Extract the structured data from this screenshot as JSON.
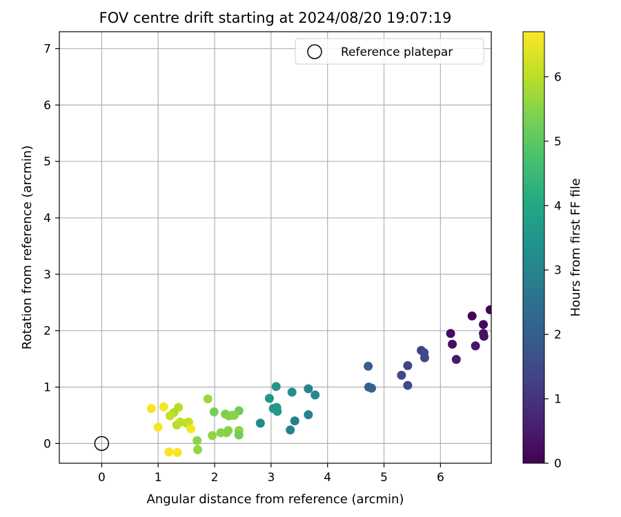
{
  "chart_data": {
    "type": "scatter",
    "title": "FOV centre drift starting at 2024/08/20 19:07:19",
    "xlabel": "Angular distance from reference (arcmin)",
    "ylabel": "Rotation from reference (arcmin)",
    "xlim": [
      -0.75,
      6.9
    ],
    "ylim": [
      -0.35,
      7.3
    ],
    "xticks": [
      0,
      1,
      2,
      3,
      4,
      5,
      6
    ],
    "yticks": [
      0,
      1,
      2,
      3,
      4,
      5,
      6,
      7
    ],
    "grid": true,
    "legend": {
      "position": "top-right",
      "label": "Reference platepar"
    },
    "reference_point": {
      "x": 0,
      "y": 0
    },
    "colorbar": {
      "label": "Hours from first FF file",
      "colormap": "viridis",
      "range": [
        0,
        6.7
      ],
      "ticks": [
        0,
        1,
        2,
        3,
        4,
        5,
        6
      ]
    },
    "series": [
      {
        "x": [
          6.88,
          6.56,
          6.76,
          6.18,
          6.21,
          6.76,
          6.77,
          6.62,
          6.28,
          5.66,
          5.42,
          5.71,
          5.72,
          5.31,
          5.42,
          4.72,
          4.73,
          4.78,
          3.09,
          2.97,
          3.04,
          3.1,
          3.11,
          3.37,
          3.66,
          3.78,
          3.42,
          3.66,
          3.34,
          2.81,
          1.88,
          2.43,
          1.99,
          2.19,
          2.25,
          2.35,
          2.31,
          2.24,
          2.21,
          2.11,
          1.96,
          2.43,
          2.43,
          1.69,
          1.7,
          1.36,
          1.28,
          1.21,
          1.33,
          1.39,
          1.5,
          1.54,
          1.58,
          1.1,
          0.88,
          1.0,
          1.19,
          1.34
        ],
        "y": [
          2.37,
          2.26,
          2.11,
          1.95,
          1.76,
          1.95,
          1.9,
          1.73,
          1.49,
          1.65,
          1.38,
          1.61,
          1.52,
          1.21,
          1.03,
          1.37,
          1.0,
          0.98,
          1.01,
          0.8,
          0.62,
          0.64,
          0.57,
          0.91,
          0.97,
          0.86,
          0.4,
          0.51,
          0.24,
          0.36,
          0.79,
          0.58,
          0.56,
          0.52,
          0.49,
          0.5,
          0.5,
          0.23,
          0.19,
          0.19,
          0.14,
          0.23,
          0.15,
          0.05,
          -0.11,
          0.64,
          0.55,
          0.49,
          0.33,
          0.38,
          0.36,
          0.38,
          0.26,
          0.65,
          0.62,
          0.29,
          -0.15,
          -0.16
        ],
        "hours": [
          0.05,
          0.1,
          0.15,
          0.2,
          0.25,
          0.3,
          0.35,
          0.4,
          0.45,
          1.3,
          1.35,
          1.4,
          1.45,
          1.5,
          1.55,
          2.0,
          2.05,
          2.1,
          3.4,
          3.45,
          3.5,
          3.55,
          3.6,
          3.3,
          3.0,
          3.05,
          2.85,
          2.9,
          2.95,
          3.1,
          5.7,
          5.2,
          5.3,
          5.35,
          5.4,
          5.45,
          5.5,
          5.5,
          5.45,
          5.5,
          5.55,
          5.55,
          5.2,
          5.5,
          5.6,
          6.0,
          5.9,
          6.1,
          5.95,
          6.05,
          6.0,
          6.1,
          6.6,
          6.6,
          6.6,
          6.65,
          6.65,
          6.65
        ]
      }
    ]
  }
}
